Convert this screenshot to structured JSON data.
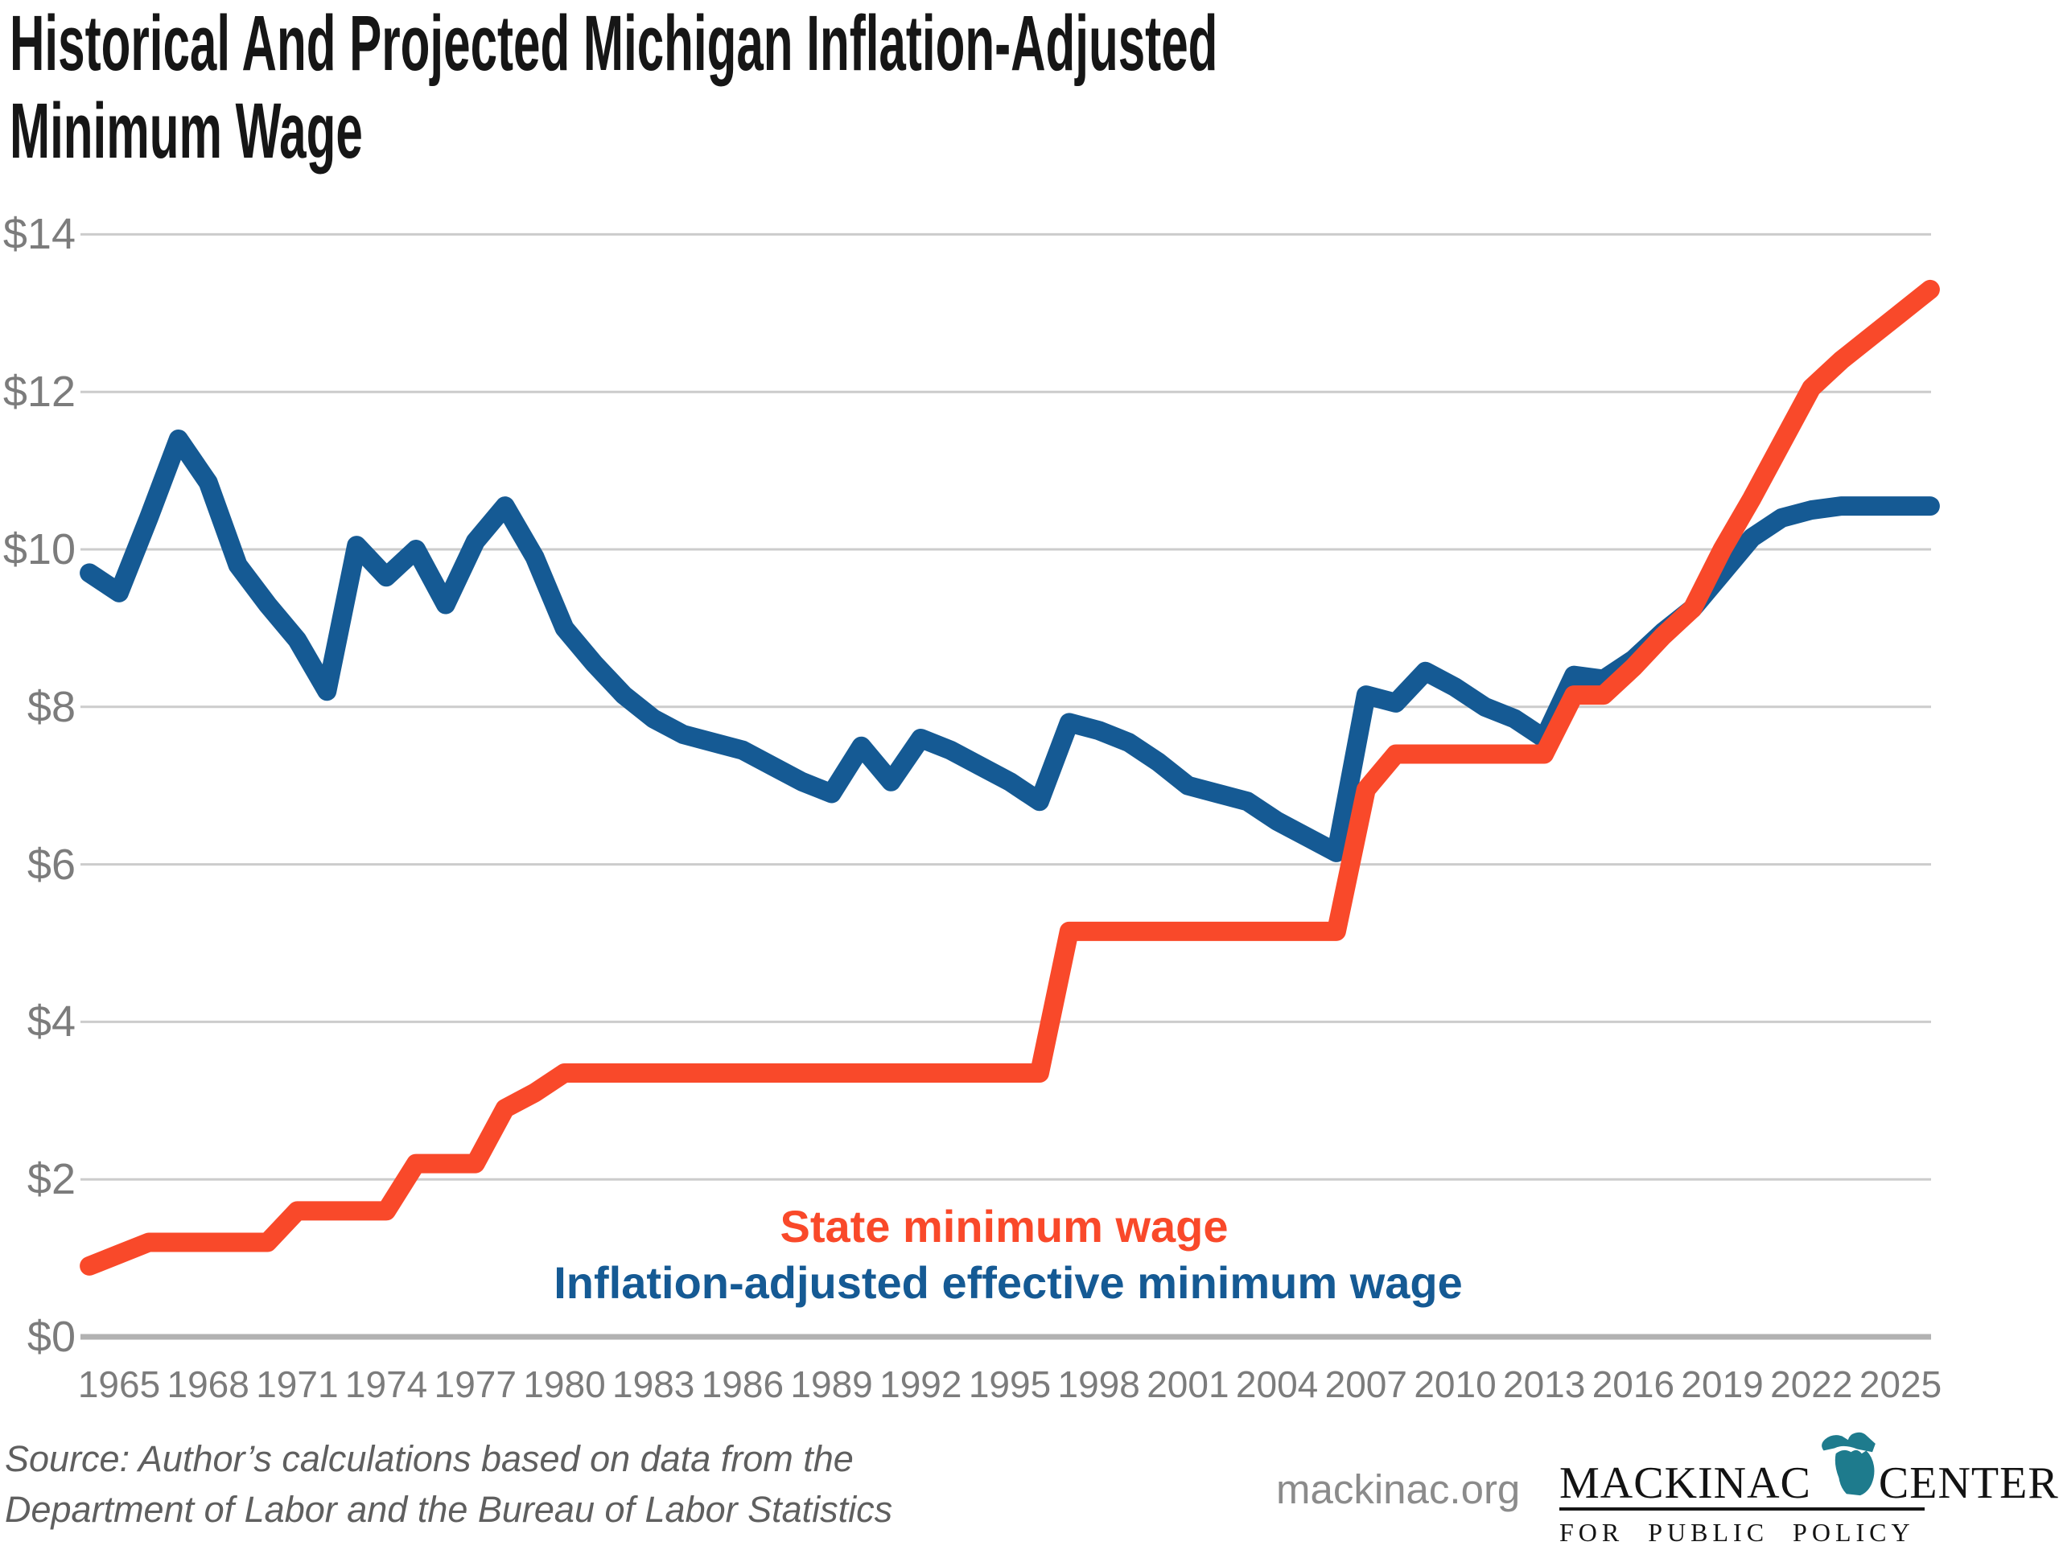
{
  "header": {
    "title_line1": "Historical And Projected Michigan Inflation-Adjusted",
    "title_line2": "Minimum Wage"
  },
  "chart_data": {
    "type": "line",
    "title": "Historical And Projected Michigan Inflation-Adjusted Minimum Wage",
    "grid": "horizontal",
    "legend_position": "inside-bottom-center",
    "ylim": [
      0,
      14
    ],
    "y_ticks": [
      {
        "v": 0,
        "label": "$0"
      },
      {
        "v": 2,
        "label": "$2"
      },
      {
        "v": 4,
        "label": "$4"
      },
      {
        "v": 6,
        "label": "$6"
      },
      {
        "v": 8,
        "label": "$8"
      },
      {
        "v": 10,
        "label": "$10"
      },
      {
        "v": 12,
        "label": "$12"
      },
      {
        "v": 14,
        "label": "$14"
      }
    ],
    "x_ticks": [
      1965,
      1968,
      1971,
      1974,
      1977,
      1980,
      1983,
      1986,
      1989,
      1992,
      1995,
      1998,
      2001,
      2004,
      2007,
      2010,
      2013,
      2016,
      2019,
      2022,
      2025
    ],
    "x": [
      1964,
      1965,
      1966,
      1967,
      1968,
      1969,
      1970,
      1971,
      1972,
      1973,
      1974,
      1975,
      1976,
      1977,
      1978,
      1979,
      1980,
      1981,
      1982,
      1983,
      1984,
      1985,
      1986,
      1987,
      1988,
      1989,
      1990,
      1991,
      1992,
      1993,
      1994,
      1995,
      1996,
      1997,
      1998,
      1999,
      2000,
      2001,
      2002,
      2003,
      2004,
      2005,
      2006,
      2007,
      2008,
      2009,
      2010,
      2011,
      2012,
      2013,
      2014,
      2015,
      2016,
      2017,
      2018,
      2019,
      2020,
      2021,
      2022,
      2023,
      2024,
      2025,
      2026
    ],
    "series": [
      {
        "name": "State minimum wage",
        "color": "#F9492A",
        "values": [
          0.9,
          1.05,
          1.2,
          1.2,
          1.2,
          1.2,
          1.2,
          1.6,
          1.6,
          1.6,
          1.6,
          2.2,
          2.2,
          2.2,
          2.9,
          3.1,
          3.35,
          3.35,
          3.35,
          3.35,
          3.35,
          3.35,
          3.35,
          3.35,
          3.35,
          3.35,
          3.35,
          3.35,
          3.35,
          3.35,
          3.35,
          3.35,
          3.35,
          5.15,
          5.15,
          5.15,
          5.15,
          5.15,
          5.15,
          5.15,
          5.15,
          5.15,
          5.15,
          6.95,
          7.4,
          7.4,
          7.4,
          7.4,
          7.4,
          7.4,
          8.15,
          8.15,
          8.5,
          8.9,
          9.25,
          10.0,
          10.65,
          11.35,
          12.05,
          12.4,
          12.7,
          13.0,
          13.3
        ]
      },
      {
        "name": "Inflation-adjusted effective minimum wage",
        "color": "#155A94",
        "values": [
          9.7,
          9.45,
          10.4,
          11.4,
          10.85,
          9.8,
          9.3,
          8.85,
          8.2,
          10.05,
          9.65,
          10.0,
          9.3,
          10.1,
          10.55,
          9.9,
          9.0,
          8.55,
          8.15,
          7.85,
          7.65,
          7.55,
          7.45,
          7.25,
          7.05,
          6.9,
          7.5,
          7.05,
          7.6,
          7.45,
          7.25,
          7.05,
          6.8,
          7.8,
          7.7,
          7.55,
          7.3,
          7.0,
          6.9,
          6.8,
          6.55,
          6.35,
          6.15,
          8.15,
          8.05,
          8.45,
          8.25,
          8.0,
          7.85,
          7.6,
          8.4,
          8.35,
          8.6,
          8.95,
          9.25,
          9.7,
          10.15,
          10.4,
          10.5,
          10.55,
          10.55,
          10.55,
          10.55
        ]
      }
    ]
  },
  "footer": {
    "source_line1": "Source: Author’s calculations based on data from the",
    "source_line2": "Department of Labor and the Bureau of Labor Statistics",
    "website": "mackinac.org",
    "logo": {
      "word1": "MACKINAC",
      "word2": "CENTER",
      "tagline": "FOR PUBLIC POLICY",
      "accent_color": "#1E7B8D"
    }
  }
}
